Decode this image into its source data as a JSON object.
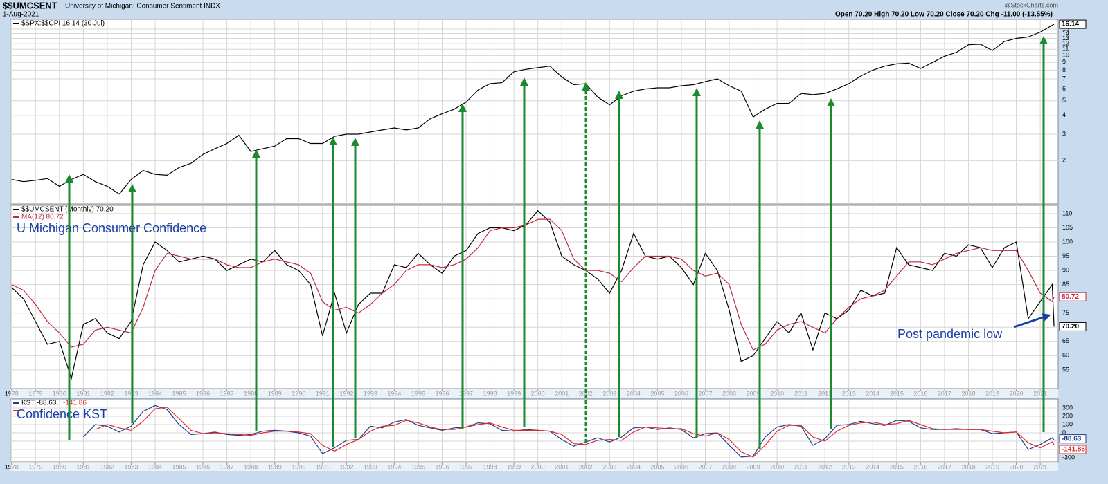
{
  "header": {
    "symbol": "$$UMCSENT",
    "name": "University of Michigan: Consumer Sentiment INDX",
    "date": "1-Aug-2021",
    "source": "@StockCharts.com",
    "quote": "Open 70.20  High 70.20  Low 70.20  Close 70.20  Chg -11.00 (-13.55%)"
  },
  "chart_data": [
    {
      "type": "line",
      "log_scale": true,
      "grid": true,
      "x": [
        1978,
        1978.5,
        1979,
        1979.5,
        1980,
        1980.5,
        1981,
        1981.5,
        1982,
        1982.5,
        1983,
        1983.5,
        1984,
        1984.5,
        1985,
        1985.5,
        1986,
        1986.5,
        1987,
        1987.5,
        1988,
        1988.5,
        1989,
        1989.5,
        1990,
        1990.5,
        1991,
        1991.5,
        1992,
        1992.5,
        1993,
        1993.5,
        1994,
        1994.5,
        1995,
        1995.5,
        1996,
        1996.5,
        1997,
        1997.5,
        1998,
        1998.5,
        1999,
        1999.5,
        2000,
        2000.5,
        2001,
        2001.5,
        2002,
        2002.5,
        2003,
        2003.5,
        2004,
        2004.5,
        2005,
        2005.5,
        2006,
        2006.5,
        2007,
        2007.5,
        2008,
        2008.5,
        2009,
        2009.5,
        2010,
        2010.5,
        2011,
        2011.5,
        2012,
        2012.5,
        2013,
        2013.5,
        2014,
        2014.5,
        2015,
        2015.5,
        2016,
        2016.5,
        2017,
        2017.5,
        2018,
        2018.5,
        2019,
        2019.5,
        2020,
        2020.5,
        2021,
        2021.5,
        2021.58
      ],
      "xlim": [
        1977.95,
        2021.75
      ],
      "xticks": [
        1978,
        1979,
        1980,
        1981,
        1982,
        1983,
        1984,
        1985,
        1986,
        1987,
        1988,
        1989,
        1990,
        1991,
        1992,
        1993,
        1994,
        1995,
        1996,
        1997,
        1998,
        1999,
        2000,
        2001,
        2002,
        2003,
        2004,
        2005,
        2006,
        2007,
        2008,
        2009,
        2010,
        2011,
        2012,
        2013,
        2014,
        2015,
        2016,
        2017,
        2018,
        2019,
        2020,
        2021
      ],
      "ylim": [
        1.03,
        17.4
      ],
      "yticks": [
        2,
        3,
        4,
        5,
        6,
        7,
        8,
        9,
        10,
        11,
        12,
        13,
        14,
        15
      ],
      "series": [
        {
          "name": "$SPX:$$CPI 16.14 (30 Jul)",
          "color": "#000000",
          "last_label": "16.14",
          "values": [
            1.5,
            1.45,
            1.48,
            1.52,
            1.35,
            1.5,
            1.62,
            1.45,
            1.35,
            1.2,
            1.5,
            1.72,
            1.62,
            1.6,
            1.8,
            1.92,
            2.2,
            2.4,
            2.6,
            2.95,
            2.3,
            2.4,
            2.5,
            2.8,
            2.8,
            2.6,
            2.6,
            2.9,
            3.0,
            3.0,
            3.1,
            3.2,
            3.3,
            3.2,
            3.3,
            3.8,
            4.1,
            4.4,
            4.9,
            5.9,
            6.5,
            6.6,
            7.8,
            8.1,
            8.3,
            8.5,
            7.2,
            6.4,
            6.5,
            5.3,
            4.7,
            5.4,
            5.8,
            6.0,
            6.1,
            6.1,
            6.3,
            6.4,
            6.7,
            7.0,
            6.3,
            5.8,
            3.9,
            4.4,
            4.8,
            4.8,
            5.6,
            5.5,
            5.6,
            6.0,
            6.5,
            7.3,
            8.0,
            8.5,
            8.8,
            8.9,
            8.2,
            9.0,
            9.9,
            10.5,
            11.8,
            11.9,
            10.8,
            12.4,
            13.0,
            13.3,
            14.3,
            15.9,
            16.14
          ]
        }
      ]
    },
    {
      "type": "line",
      "grid": true,
      "annotation": "U Michigan Consumer Confidence",
      "note": "Post pandemic low",
      "x": [
        1978,
        1978.5,
        1979,
        1979.5,
        1980,
        1980.5,
        1981,
        1981.5,
        1982,
        1982.5,
        1983,
        1983.5,
        1984,
        1984.5,
        1985,
        1985.5,
        1986,
        1986.5,
        1987,
        1987.5,
        1988,
        1988.5,
        1989,
        1989.5,
        1990,
        1990.5,
        1991,
        1991.5,
        1992,
        1992.5,
        1993,
        1993.5,
        1994,
        1994.5,
        1995,
        1995.5,
        1996,
        1996.5,
        1997,
        1997.5,
        1998,
        1998.5,
        1999,
        1999.5,
        2000,
        2000.5,
        2001,
        2001.5,
        2002,
        2002.5,
        2003,
        2003.5,
        2004,
        2004.5,
        2005,
        2005.5,
        2006,
        2006.5,
        2007,
        2007.5,
        2008,
        2008.5,
        2009,
        2009.5,
        2010,
        2010.5,
        2011,
        2011.5,
        2012,
        2012.5,
        2013,
        2013.5,
        2014,
        2014.5,
        2015,
        2015.5,
        2016,
        2016.5,
        2017,
        2017.5,
        2018,
        2018.5,
        2019,
        2019.5,
        2020,
        2020.5,
        2021,
        2021.5,
        2021.58
      ],
      "xlim": [
        1977.95,
        2021.75
      ],
      "xticks": [
        1978,
        1979,
        1980,
        1981,
        1982,
        1983,
        1984,
        1985,
        1986,
        1987,
        1988,
        1989,
        1990,
        1991,
        1992,
        1993,
        1994,
        1995,
        1996,
        1997,
        1998,
        1999,
        2000,
        2001,
        2002,
        2003,
        2004,
        2005,
        2006,
        2007,
        2008,
        2009,
        2010,
        2011,
        2012,
        2013,
        2014,
        2015,
        2016,
        2017,
        2018,
        2019,
        2020,
        2021
      ],
      "ylim": [
        48.4,
        112.9
      ],
      "yticks": [
        55,
        60,
        65,
        70,
        75,
        80,
        85,
        90,
        95,
        100,
        105,
        110
      ],
      "series": [
        {
          "name": "$$UMCSENT (Monthly) 70.20",
          "color": "#000000",
          "last_label": "70.20",
          "values": [
            84,
            80,
            72,
            64,
            65,
            52,
            71,
            73,
            68,
            66,
            72,
            92,
            100,
            97,
            93,
            94,
            95,
            94,
            90,
            92,
            94,
            93,
            97,
            92,
            90,
            85,
            67,
            82,
            68,
            78,
            82,
            82,
            92,
            91,
            96,
            92,
            89,
            95,
            97,
            103,
            105,
            105,
            104,
            106,
            111,
            107,
            95,
            92,
            90,
            87,
            82,
            90,
            103,
            95,
            94,
            95,
            91,
            85,
            96,
            90,
            76,
            58,
            60,
            66,
            72,
            68,
            75,
            62,
            75,
            73,
            76,
            83,
            81,
            82,
            98,
            92,
            91,
            90,
            96,
            95,
            99,
            98,
            91,
            98,
            100,
            73,
            79,
            85,
            70.2
          ]
        },
        {
          "name": "MA(12) 80.72",
          "color": "#c0283c",
          "last_label": "80.72",
          "values": [
            85,
            83,
            78,
            72,
            68,
            63,
            64,
            69,
            70,
            69,
            68,
            77,
            90,
            96,
            95,
            94,
            94,
            94,
            92,
            91,
            91,
            93,
            94,
            93,
            92,
            89,
            79,
            76,
            77,
            75,
            78,
            82,
            85,
            90,
            92,
            92,
            91,
            92,
            94,
            98,
            104,
            105,
            105,
            106,
            108,
            108,
            104,
            94,
            90,
            90,
            89,
            86,
            91,
            95,
            95,
            95,
            94,
            90,
            88,
            89,
            85,
            71,
            62,
            64,
            69,
            71,
            72,
            70,
            68,
            73,
            77,
            80,
            81,
            83,
            88,
            93,
            93,
            92,
            94,
            96,
            97,
            98,
            97,
            97,
            97,
            90,
            82,
            79,
            80.72
          ]
        }
      ]
    },
    {
      "type": "line",
      "grid": true,
      "annotation": "Confidence KST",
      "x": [
        1978,
        1978.5,
        1979,
        1979.5,
        1980,
        1980.5,
        1981,
        1981.5,
        1982,
        1982.5,
        1983,
        1983.5,
        1984,
        1984.5,
        1985,
        1985.5,
        1986,
        1986.5,
        1987,
        1987.5,
        1988,
        1988.5,
        1989,
        1989.5,
        1990,
        1990.5,
        1991,
        1991.5,
        1992,
        1992.5,
        1993,
        1993.5,
        1994,
        1994.5,
        1995,
        1995.5,
        1996,
        1996.5,
        1997,
        1997.5,
        1998,
        1998.5,
        1999,
        1999.5,
        2000,
        2000.5,
        2001,
        2001.5,
        2002,
        2002.5,
        2003,
        2003.5,
        2004,
        2004.5,
        2005,
        2005.5,
        2006,
        2006.5,
        2007,
        2007.5,
        2008,
        2008.5,
        2009,
        2009.5,
        2010,
        2010.5,
        2011,
        2011.5,
        2012,
        2012.5,
        2013,
        2013.5,
        2014,
        2014.5,
        2015,
        2015.5,
        2016,
        2016.5,
        2017,
        2017.5,
        2018,
        2018.5,
        2019,
        2019.5,
        2020,
        2020.5,
        2021,
        2021.5,
        2021.58
      ],
      "xlim": [
        1977.95,
        2021.75
      ],
      "xticks": [
        1978,
        1979,
        1980,
        1981,
        1982,
        1983,
        1984,
        1985,
        1986,
        1987,
        1988,
        1989,
        1990,
        1991,
        1992,
        1993,
        1994,
        1995,
        1996,
        1997,
        1998,
        1999,
        2000,
        2001,
        2002,
        2003,
        2004,
        2005,
        2006,
        2007,
        2008,
        2009,
        2010,
        2011,
        2012,
        2013,
        2014,
        2015,
        2016,
        2017,
        2018,
        2019,
        2020,
        2021
      ],
      "ylim": [
        -350,
        408
      ],
      "yticks": [
        -300,
        -200,
        -100,
        0,
        100,
        200,
        300
      ],
      "series": [
        {
          "name": "KST -88.63,",
          "color": "#1c3f8c",
          "last_label": "-88.63",
          "values": [
            null,
            null,
            null,
            null,
            null,
            null,
            -50,
            100,
            80,
            10,
            80,
            260,
            330,
            280,
            100,
            -20,
            -10,
            10,
            -20,
            -30,
            -20,
            20,
            30,
            20,
            0,
            -40,
            -250,
            -180,
            -90,
            -80,
            80,
            60,
            130,
            160,
            90,
            60,
            30,
            60,
            70,
            120,
            110,
            30,
            20,
            40,
            30,
            20,
            -80,
            -160,
            -110,
            -60,
            -110,
            -50,
            60,
            70,
            40,
            60,
            40,
            -60,
            -10,
            0,
            -150,
            -290,
            -280,
            -50,
            70,
            100,
            80,
            -150,
            -70,
            90,
            100,
            140,
            110,
            90,
            150,
            140,
            60,
            40,
            40,
            50,
            40,
            40,
            -10,
            0,
            10,
            -200,
            -140,
            -60,
            -88.63
          ]
        },
        {
          "name": "-141.86",
          "color": "#e0282c",
          "last_label": "-141.86",
          "values": [
            null,
            null,
            null,
            null,
            null,
            null,
            null,
            40,
            100,
            60,
            30,
            140,
            290,
            310,
            170,
            30,
            -10,
            0,
            -10,
            -20,
            -30,
            0,
            20,
            20,
            10,
            -10,
            -150,
            -220,
            -140,
            -80,
            20,
            80,
            90,
            150,
            120,
            70,
            40,
            40,
            70,
            100,
            120,
            70,
            30,
            30,
            30,
            20,
            -20,
            -130,
            -140,
            -90,
            -80,
            -90,
            10,
            70,
            60,
            50,
            50,
            -10,
            -40,
            0,
            -80,
            -230,
            -290,
            -150,
            20,
            90,
            90,
            -50,
            -100,
            20,
            90,
            120,
            130,
            100,
            110,
            150,
            100,
            50,
            40,
            40,
            40,
            40,
            20,
            0,
            10,
            -120,
            -180,
            -110,
            -141.86
          ]
        }
      ]
    }
  ]
}
